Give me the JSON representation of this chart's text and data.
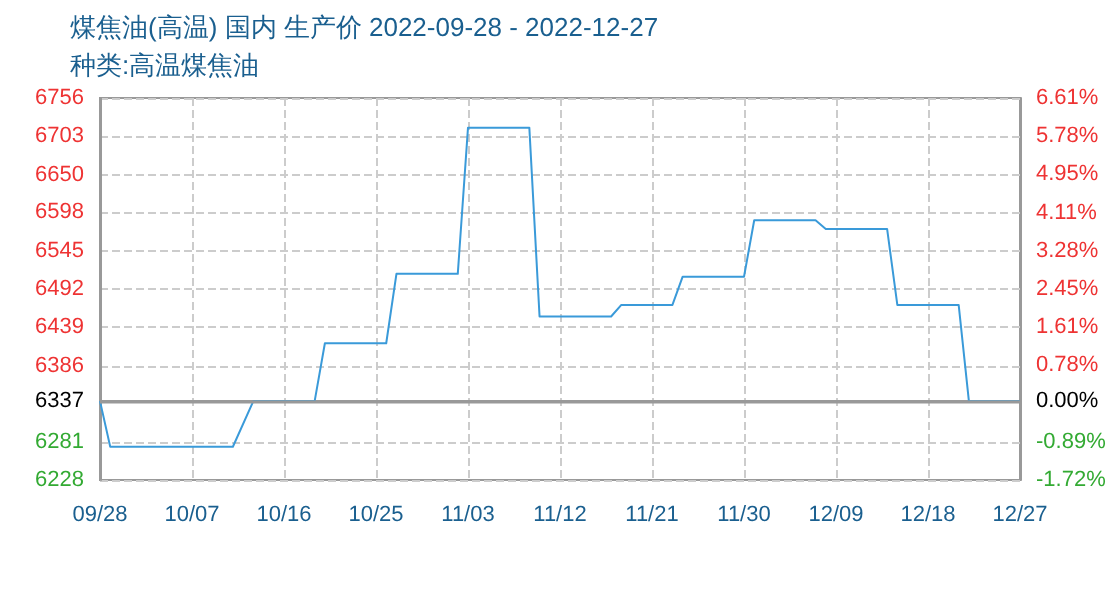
{
  "chart_data": {
    "type": "line",
    "title": "煤焦油(高温) 国内 生产价 2022-09-28 - 2022-12-27",
    "subtitle": "种类:高温煤焦油",
    "x": [
      "2022-09-28",
      "2022-09-29",
      "2022-10-11",
      "2022-10-13",
      "2022-10-19",
      "2022-10-20",
      "2022-10-26",
      "2022-10-27",
      "2022-11-02",
      "2022-11-03",
      "2022-11-09",
      "2022-11-10",
      "2022-11-17",
      "2022-11-18",
      "2022-11-23",
      "2022-11-24",
      "2022-11-30",
      "2022-12-01",
      "2022-12-07",
      "2022-12-08",
      "2022-12-14",
      "2022-12-15",
      "2022-12-21",
      "2022-12-22",
      "2022-12-27"
    ],
    "series": [
      {
        "color": "#3a9ad9",
        "values": [
          6337,
          6274,
          6274,
          6337,
          6337,
          6417,
          6417,
          6513,
          6513,
          6715,
          6715,
          6454,
          6454,
          6470,
          6470,
          6509,
          6509,
          6587,
          6587,
          6575,
          6575,
          6470,
          6470,
          6337,
          6337
        ]
      }
    ],
    "xlim": [
      "2022-09-28",
      "2022-12-27"
    ],
    "xticks": [
      {
        "value": "2022-09-28",
        "label": "09/28"
      },
      {
        "value": "2022-10-07",
        "label": "10/07"
      },
      {
        "value": "2022-10-16",
        "label": "10/16"
      },
      {
        "value": "2022-10-25",
        "label": "10/25"
      },
      {
        "value": "2022-11-03",
        "label": "11/03"
      },
      {
        "value": "2022-11-12",
        "label": "11/12"
      },
      {
        "value": "2022-11-21",
        "label": "11/21"
      },
      {
        "value": "2022-11-30",
        "label": "11/30"
      },
      {
        "value": "2022-12-09",
        "label": "12/09"
      },
      {
        "value": "2022-12-18",
        "label": "12/18"
      },
      {
        "value": "2022-12-27",
        "label": "12/27"
      }
    ],
    "ylim": [
      6228,
      6756
    ],
    "yticks": [
      6228,
      6281,
      6337,
      6386,
      6439,
      6492,
      6545,
      6598,
      6650,
      6703,
      6756
    ],
    "y2lim": [
      -1.72,
      6.61
    ],
    "y2ticks": [
      {
        "value": -1.72,
        "label": "-1.72%"
      },
      {
        "value": -0.89,
        "label": "-0.89%"
      },
      {
        "value": 0,
        "label": "0.00%"
      },
      {
        "value": 0.78,
        "label": "0.78%"
      },
      {
        "value": 1.61,
        "label": "1.61%"
      },
      {
        "value": 2.45,
        "label": "2.45%"
      },
      {
        "value": 3.28,
        "label": "3.28%"
      },
      {
        "value": 4.11,
        "label": "4.11%"
      },
      {
        "value": 4.95,
        "label": "4.95%"
      },
      {
        "value": 5.78,
        "label": "5.78%"
      },
      {
        "value": 6.61,
        "label": "6.61%"
      }
    ],
    "ref_lines": [
      {
        "axis": "y",
        "value": 6337,
        "color": "#999999",
        "line_style": "solid"
      }
    ],
    "grid": true,
    "marker": "none",
    "line_style": "solid"
  }
}
